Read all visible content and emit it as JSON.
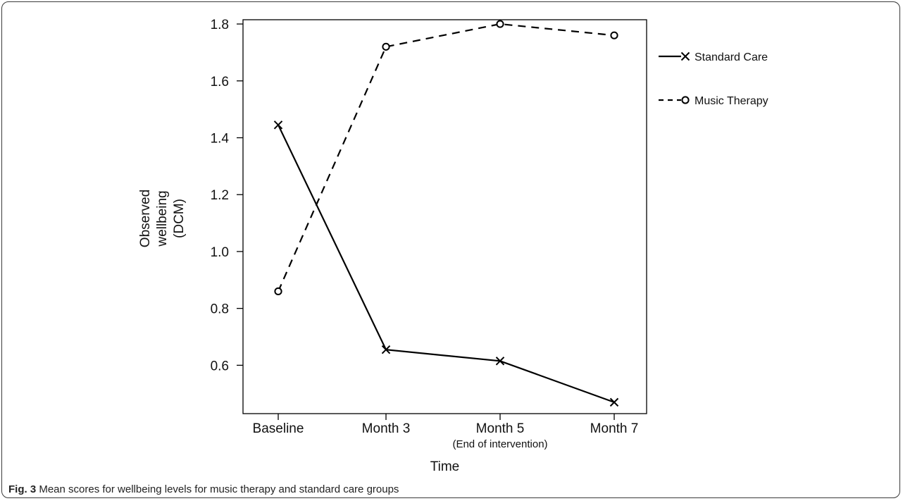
{
  "chart_data": {
    "type": "line",
    "categories": [
      "Baseline",
      "Month 3",
      "Month 5",
      "Month 7"
    ],
    "category_sublabels": [
      "",
      "",
      "(End of intervention)",
      ""
    ],
    "series": [
      {
        "name": "Standard Care",
        "values": [
          1.445,
          0.655,
          0.615,
          0.47
        ],
        "marker": "x",
        "line_style": "solid",
        "color": "#000000"
      },
      {
        "name": "Music Therapy",
        "values": [
          0.86,
          1.72,
          1.8,
          1.76
        ],
        "marker": "o",
        "line_style": "dashed",
        "color": "#000000"
      }
    ],
    "xlabel": "Time",
    "ylabel_lines": [
      "Observed",
      "wellbeing",
      "(DCM)"
    ],
    "yticks": [
      "0.6",
      "0.8",
      "1.0",
      "1.2",
      "1.4",
      "1.6",
      "1.8"
    ],
    "ylim": [
      0.43,
      1.815
    ],
    "grid": false,
    "legend_position": "right"
  },
  "caption": {
    "label": "Fig. 3",
    "text": " Mean scores for wellbeing levels for music therapy and standard care groups"
  }
}
